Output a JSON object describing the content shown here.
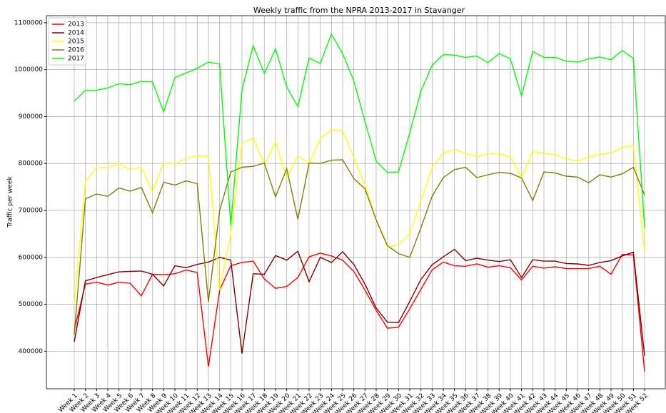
{
  "chart_data": {
    "type": "line",
    "title": "Weekly traffic from the NPRA 2013-2017 in Stavanger",
    "y_label": "Traffic per week",
    "categories": [
      "Week 1",
      "Week 2",
      "Week 3",
      "Week 4",
      "Week 5",
      "Week 6",
      "Week 7",
      "Week 8",
      "Week 9",
      "Week 10",
      "Week 11",
      "Week 12",
      "Week 13",
      "Week 14",
      "Week 15",
      "Week 16",
      "Week 17",
      "Week 18",
      "Week 19",
      "Week 20",
      "Week 21",
      "Week 22",
      "Week 23",
      "Week 24",
      "Week 25",
      "Week 26",
      "Week 27",
      "Week 28",
      "Week 29",
      "Week 30",
      "Week 31",
      "Week 32",
      "Week 33",
      "Week 34",
      "Week 35",
      "Week 36",
      "Week 37",
      "Week 38",
      "Week 39",
      "Week 40",
      "Week 41",
      "Week 42",
      "Week 43",
      "Week 44",
      "Week 45",
      "Week 46",
      "Week 47",
      "Week 48",
      "Week 49",
      "Week 50",
      "Week 51",
      "Week 52"
    ],
    "series": [
      {
        "name": "2013",
        "color": "#ff0000",
        "values": [
          445000,
          543000,
          547000,
          541000,
          547000,
          545000,
          518000,
          564000,
          563000,
          565000,
          573000,
          568000,
          367000,
          530000,
          582000,
          589000,
          592000,
          554000,
          534000,
          538000,
          557000,
          601000,
          609000,
          603000,
          594000,
          570000,
          530000,
          487000,
          449000,
          451000,
          490000,
          532000,
          573000,
          590000,
          582000,
          581000,
          586000,
          579000,
          582000,
          578000,
          552000,
          581000,
          577000,
          580000,
          576000,
          576000,
          576000,
          581000,
          564000,
          606000,
          605000,
          357000
        ]
      },
      {
        "name": "2014",
        "color": "#800000",
        "values": [
          420000,
          550000,
          557000,
          563000,
          569000,
          570000,
          571000,
          564000,
          539000,
          582000,
          578000,
          585000,
          590000,
          600000,
          594000,
          395000,
          565000,
          564000,
          604000,
          594000,
          613000,
          548000,
          600000,
          589000,
          612000,
          585000,
          543000,
          492000,
          462000,
          461000,
          506000,
          553000,
          584000,
          601000,
          617000,
          593000,
          598000,
          594000,
          591000,
          595000,
          557000,
          595000,
          592000,
          592000,
          587000,
          586000,
          583000,
          589000,
          593000,
          603000,
          611000,
          390000
        ]
      },
      {
        "name": "2015",
        "color": "#ffff00",
        "values": [
          500000,
          762000,
          791000,
          791000,
          800000,
          787000,
          792000,
          740000,
          801000,
          799000,
          810000,
          817000,
          815000,
          530000,
          650000,
          843000,
          855000,
          797000,
          846000,
          770000,
          816000,
          800000,
          853000,
          872000,
          870000,
          812000,
          755000,
          680000,
          622000,
          627000,
          650000,
          720000,
          792000,
          822000,
          830000,
          821000,
          815000,
          821000,
          820000,
          815000,
          770000,
          826000,
          821000,
          819000,
          810000,
          805000,
          814000,
          819000,
          822000,
          835000,
          838000,
          612000
        ]
      },
      {
        "name": "2016",
        "color": "#808000",
        "values": [
          435000,
          725000,
          735000,
          730000,
          748000,
          741000,
          749000,
          695000,
          760000,
          754000,
          763000,
          757000,
          505000,
          700000,
          782000,
          792000,
          794000,
          801000,
          729000,
          789000,
          681000,
          801000,
          800000,
          807000,
          808000,
          768000,
          746000,
          680000,
          625000,
          608000,
          600000,
          663000,
          730000,
          770000,
          787000,
          792000,
          770000,
          776000,
          781000,
          779000,
          769000,
          721000,
          782000,
          780000,
          773000,
          771000,
          759000,
          776000,
          771000,
          778000,
          792000,
          733000
        ]
      },
      {
        "name": "2017",
        "color": "#00ff00",
        "values": [
          933000,
          956000,
          956000,
          961000,
          970000,
          968000,
          975000,
          974000,
          910000,
          983000,
          993000,
          1003000,
          1016000,
          1012000,
          668000,
          957000,
          1051000,
          992000,
          1044000,
          963000,
          921000,
          1025000,
          1013000,
          1076000,
          1034000,
          976000,
          890000,
          805000,
          781000,
          782000,
          865000,
          954000,
          1009000,
          1032000,
          1031000,
          1026000,
          1029000,
          1015000,
          1034000,
          1023000,
          944000,
          1039000,
          1026000,
          1026000,
          1018000,
          1016000,
          1023000,
          1027000,
          1021000,
          1041000,
          1024000,
          664000
        ]
      }
    ],
    "ylim": [
      320000,
      1115000
    ],
    "yticks": [
      400000,
      500000,
      600000,
      700000,
      800000,
      900000,
      1000000,
      1100000
    ],
    "grid": true,
    "legend": "upper-left"
  }
}
